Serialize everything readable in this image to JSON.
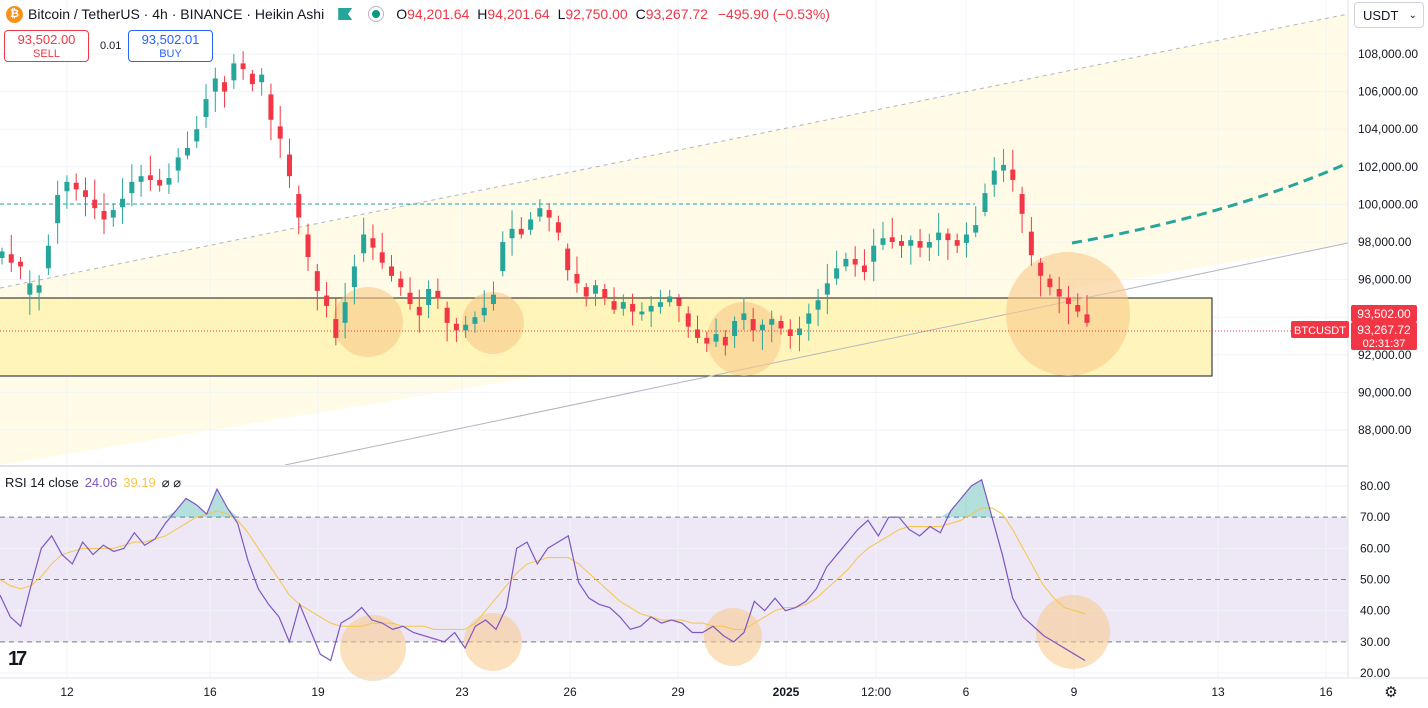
{
  "header": {
    "symbol_title": "Bitcoin / TetherUS · 4h · BINANCE · Heikin Ashi",
    "logo_glyph": "₿",
    "ohlc": [
      {
        "k": "O",
        "v": "94,201.64"
      },
      {
        "k": "H",
        "v": "94,201.64"
      },
      {
        "k": "L",
        "v": "92,750.00"
      },
      {
        "k": "C",
        "v": "93,267.72"
      }
    ],
    "change": "−495.90 (−0.53%)"
  },
  "trade": {
    "sell_price": "93,502.00",
    "sell_label": "SELL",
    "spread": "0.01",
    "buy_price": "93,502.01",
    "buy_label": "BUY"
  },
  "currency": {
    "label": "USDT",
    "chevron": "⌄"
  },
  "rsi_header": {
    "name": "RSI 14 close",
    "rsi": "24.06",
    "ma": "39.19",
    "icons": "⌀ ⌀"
  },
  "tv_logo": "17",
  "settings_icon": "gear-icon",
  "colors": {
    "up": "#26a69a",
    "down": "#f23645",
    "rsi": "#7e57c2",
    "rsi_ma": "#f7c548",
    "zone": "#fff3b0",
    "circle": "#f9c98a"
  },
  "chart_data": [
    {
      "type": "candlestick",
      "title": "Bitcoin / TetherUS · 4h · BINANCE · Heikin Ashi",
      "ylim": [
        86000,
        110000
      ],
      "yticks": [
        88000,
        90000,
        92000,
        94000,
        96000,
        98000,
        100000,
        102000,
        104000,
        106000,
        108000
      ],
      "ytick_labels": [
        "88,000.00",
        "90,000.00",
        "92,000.00",
        "94,000.00",
        "96,000.00",
        "98,000.00",
        "100,000.00",
        "102,000.00",
        "104,000.00",
        "106,000.00",
        "108,000.00"
      ],
      "xtick_labels": [
        "12",
        "16",
        "19",
        "23",
        "26",
        "29",
        "2025",
        "12:00",
        "6",
        "9",
        "13",
        "16"
      ],
      "price_labels": {
        "symbol": "BTCUSDT",
        "ask": "93,502.00",
        "last": "93,267.72",
        "countdown": "02:31:37"
      },
      "close_path": [
        [
          97500,
          "u"
        ],
        [
          96900,
          "d"
        ],
        [
          96700,
          "d"
        ],
        [
          95200,
          "u"
        ],
        [
          95700,
          "u"
        ],
        [
          97800,
          "u"
        ],
        [
          100500,
          "u"
        ],
        [
          101200,
          "u"
        ],
        [
          100800,
          "d"
        ],
        [
          100400,
          "d"
        ],
        [
          99800,
          "d"
        ],
        [
          99200,
          "d"
        ],
        [
          99700,
          "u"
        ],
        [
          100300,
          "u"
        ],
        [
          101200,
          "u"
        ],
        [
          101500,
          "u"
        ],
        [
          101300,
          "d"
        ],
        [
          101000,
          "d"
        ],
        [
          101400,
          "u"
        ],
        [
          102500,
          "u"
        ],
        [
          103000,
          "u"
        ],
        [
          104000,
          "u"
        ],
        [
          105600,
          "u"
        ],
        [
          106700,
          "u"
        ],
        [
          106000,
          "d"
        ],
        [
          107500,
          "u"
        ],
        [
          107200,
          "d"
        ],
        [
          106400,
          "d"
        ],
        [
          106900,
          "u"
        ],
        [
          104500,
          "d"
        ],
        [
          103500,
          "d"
        ],
        [
          101500,
          "d"
        ],
        [
          99300,
          "d"
        ],
        [
          97200,
          "d"
        ],
        [
          95400,
          "d"
        ],
        [
          94600,
          "d"
        ],
        [
          92900,
          "d"
        ],
        [
          94800,
          "u"
        ],
        [
          96700,
          "u"
        ],
        [
          98400,
          "u"
        ],
        [
          97700,
          "d"
        ],
        [
          96900,
          "d"
        ],
        [
          96200,
          "d"
        ],
        [
          95600,
          "d"
        ],
        [
          94700,
          "d"
        ],
        [
          94100,
          "d"
        ],
        [
          95500,
          "u"
        ],
        [
          95000,
          "d"
        ],
        [
          93700,
          "d"
        ],
        [
          93300,
          "d"
        ],
        [
          93600,
          "u"
        ],
        [
          94000,
          "u"
        ],
        [
          94500,
          "u"
        ],
        [
          95200,
          "u"
        ],
        [
          98000,
          "u"
        ],
        [
          98700,
          "u"
        ],
        [
          98400,
          "d"
        ],
        [
          99200,
          "u"
        ],
        [
          99800,
          "u"
        ],
        [
          99300,
          "d"
        ],
        [
          98500,
          "d"
        ],
        [
          96500,
          "d"
        ],
        [
          95800,
          "d"
        ],
        [
          95100,
          "d"
        ],
        [
          95700,
          "u"
        ],
        [
          95000,
          "d"
        ],
        [
          94400,
          "d"
        ],
        [
          94800,
          "u"
        ],
        [
          94300,
          "d"
        ],
        [
          94300,
          "u"
        ],
        [
          94600,
          "u"
        ],
        [
          94800,
          "u"
        ],
        [
          95100,
          "u"
        ],
        [
          94600,
          "d"
        ],
        [
          93500,
          "d"
        ],
        [
          92900,
          "d"
        ],
        [
          92600,
          "d"
        ],
        [
          93100,
          "u"
        ],
        [
          92500,
          "d"
        ],
        [
          93800,
          "u"
        ],
        [
          94200,
          "u"
        ],
        [
          93300,
          "d"
        ],
        [
          93600,
          "u"
        ],
        [
          93900,
          "u"
        ],
        [
          93400,
          "d"
        ],
        [
          93000,
          "d"
        ],
        [
          93400,
          "u"
        ],
        [
          94200,
          "u"
        ],
        [
          94900,
          "u"
        ],
        [
          95800,
          "u"
        ],
        [
          96600,
          "u"
        ],
        [
          97100,
          "u"
        ],
        [
          96800,
          "d"
        ],
        [
          96400,
          "d"
        ],
        [
          97800,
          "u"
        ],
        [
          98200,
          "u"
        ],
        [
          98000,
          "d"
        ],
        [
          97800,
          "d"
        ],
        [
          98100,
          "u"
        ],
        [
          97700,
          "d"
        ],
        [
          98000,
          "u"
        ],
        [
          98500,
          "u"
        ],
        [
          98100,
          "d"
        ],
        [
          97800,
          "d"
        ],
        [
          98400,
          "u"
        ],
        [
          98900,
          "u"
        ],
        [
          100600,
          "u"
        ],
        [
          101800,
          "u"
        ],
        [
          102100,
          "u"
        ],
        [
          101300,
          "d"
        ],
        [
          99500,
          "d"
        ],
        [
          97300,
          "d"
        ],
        [
          96200,
          "d"
        ],
        [
          95600,
          "d"
        ],
        [
          95100,
          "d"
        ],
        [
          94700,
          "d"
        ],
        [
          94300,
          "d"
        ],
        [
          93700,
          "d"
        ]
      ]
    },
    {
      "type": "line",
      "title": "RSI 14 close",
      "ylim": [
        18,
        83
      ],
      "yticks": [
        20,
        30,
        40,
        50,
        60,
        70,
        80
      ],
      "ytick_labels": [
        "20.00",
        "30.00",
        "40.00",
        "50.00",
        "60.00",
        "70.00",
        "80.00"
      ],
      "bands": [
        30,
        50,
        70
      ],
      "series": [
        {
          "name": "RSI",
          "values": [
            45,
            38,
            35,
            48,
            60,
            64,
            58,
            55,
            62,
            58,
            61,
            59,
            60,
            65,
            61,
            63,
            68,
            72,
            76,
            74,
            71,
            79,
            73,
            68,
            56,
            47,
            42,
            38,
            30,
            42,
            34,
            26,
            24,
            36,
            38,
            41,
            37,
            36,
            34,
            35,
            33,
            32,
            31,
            30,
            33,
            28,
            35,
            37,
            34,
            41,
            60,
            62,
            55,
            60,
            62,
            64,
            49,
            44,
            42,
            41,
            38,
            34,
            35,
            38,
            36,
            37,
            36,
            33,
            33,
            35,
            32,
            30,
            33,
            43,
            40,
            44,
            40,
            41,
            43,
            47,
            54,
            58,
            62,
            66,
            69,
            64,
            70,
            70,
            66,
            64,
            67,
            65,
            72,
            76,
            80,
            82,
            70,
            58,
            44,
            38,
            35,
            32,
            30,
            28,
            26,
            24
          ]
        },
        {
          "name": "RSI MA",
          "values": [
            50,
            48,
            47,
            48,
            51,
            55,
            58,
            59,
            60,
            60,
            60,
            60,
            61,
            62,
            62,
            63,
            64,
            66,
            68,
            70,
            71,
            72,
            71,
            69,
            65,
            60,
            55,
            50,
            45,
            42,
            40,
            38,
            36,
            35,
            35,
            35,
            36,
            36,
            36,
            35,
            35,
            35,
            34,
            34,
            34,
            34,
            36,
            40,
            44,
            48,
            52,
            55,
            56,
            57,
            57,
            57,
            55,
            52,
            49,
            46,
            43,
            41,
            39,
            38,
            37,
            37,
            37,
            36,
            36,
            35,
            35,
            34,
            34,
            36,
            38,
            40,
            41,
            41,
            42,
            44,
            47,
            50,
            53,
            57,
            60,
            62,
            64,
            66,
            67,
            67,
            67,
            67,
            68,
            69,
            71,
            73,
            73,
            71,
            66,
            60,
            54,
            48,
            44,
            41,
            40,
            39
          ]
        }
      ]
    }
  ]
}
